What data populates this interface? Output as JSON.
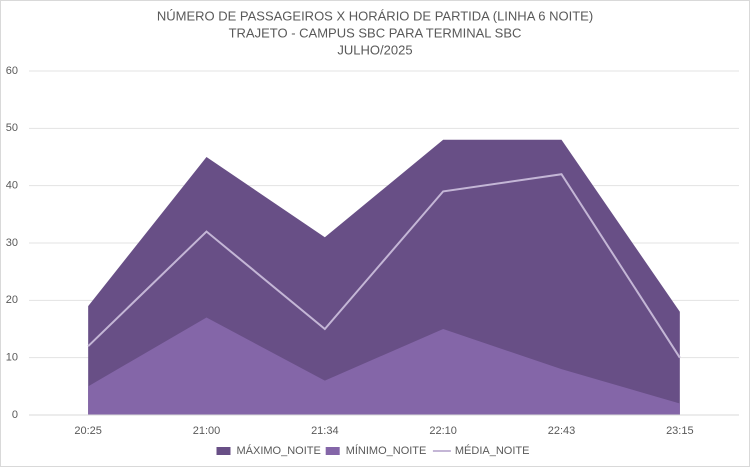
{
  "chart_data": {
    "type": "area",
    "title": [
      "NÚMERO DE PASSAGEIROS X HORÁRIO DE PARTIDA (LINHA 6 NOITE)",
      "TRAJETO - CAMPUS SBC PARA TERMINAL SBC",
      "JULHO/2025"
    ],
    "categories": [
      "20:25",
      "21:00",
      "21:34",
      "22:10",
      "22:43",
      "23:15"
    ],
    "series": [
      {
        "name": "MÁXIMO_NOITE",
        "type": "area",
        "color": "#684f86",
        "values": [
          19,
          45,
          31,
          48,
          48,
          18
        ]
      },
      {
        "name": "MÍNIMO_NOITE",
        "type": "area",
        "color": "#8466a8",
        "values": [
          5,
          17,
          6,
          15,
          8,
          2
        ]
      },
      {
        "name": "MÉDIA_NOITE",
        "type": "line",
        "color": "#c4b6d6",
        "values": [
          12,
          32,
          15,
          39,
          42,
          10
        ]
      }
    ],
    "ylim": [
      0,
      60
    ],
    "yticks": [
      0,
      10,
      20,
      30,
      40,
      50,
      60
    ],
    "grid": true,
    "legend": "bottom"
  }
}
